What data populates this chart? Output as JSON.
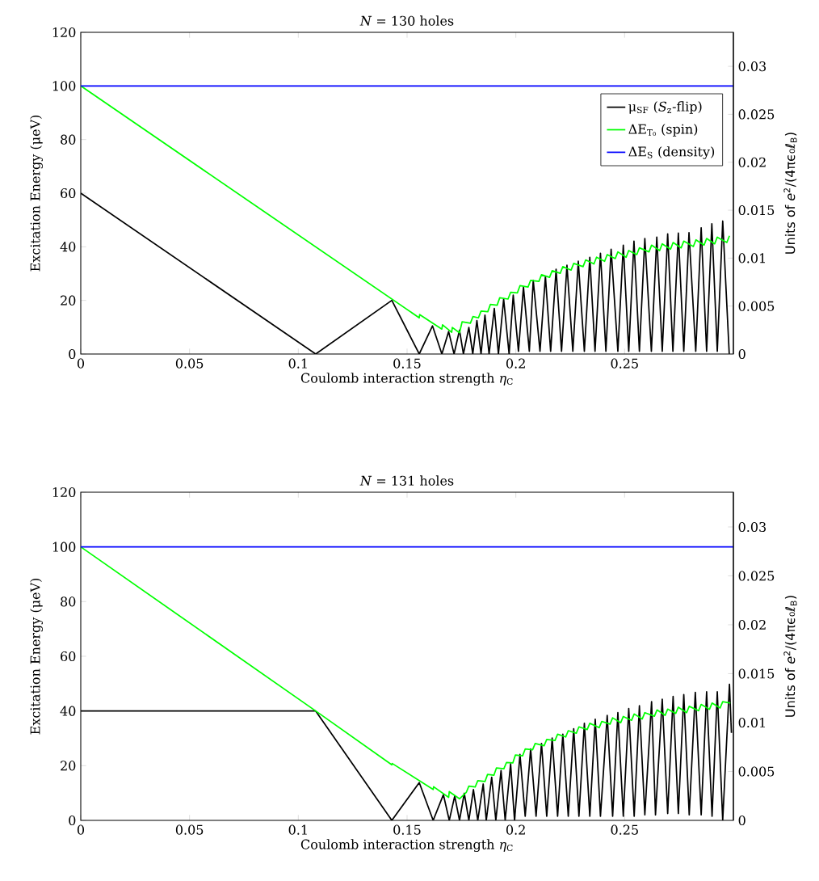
{
  "chart_data": [
    {
      "type": "line",
      "title": "*N* = 130 holes",
      "xlabel": "Coulomb interaction strength *η*$_{C}$",
      "ylabel": "Excitation Energy (μeV)",
      "y2label": "Units of *e*$^{2}$/(4πϵ₀ℓ$_{B}$)",
      "xlim": [
        0,
        0.3
      ],
      "ylim": [
        0,
        120
      ],
      "y2lim": [
        0,
        0.03355
      ],
      "xticks": [
        0,
        0.05,
        0.1,
        0.15,
        0.2,
        0.25
      ],
      "yticks": [
        0,
        20,
        40,
        60,
        80,
        100,
        120
      ],
      "y2ticks": [
        0,
        0.005,
        0.01,
        0.015,
        0.02,
        0.025,
        0.03
      ],
      "legend": "top right",
      "grid": false,
      "line_style": "solid",
      "series": [
        {
          "name": "μ$_{SF}$ (*S*$_{z}$-flip)",
          "color": "#000000",
          "x": [
            0,
            0.108,
            0.143,
            0.1556,
            0.1617,
            0.166,
            0.1691,
            0.1716,
            0.1741,
            0.1759,
            0.1784,
            0.1802,
            0.1821,
            0.184,
            0.1858,
            0.1877,
            0.1901,
            0.192,
            0.1944,
            0.1969,
            0.1988,
            0.2012,
            0.2035,
            0.2062,
            0.208,
            0.2111,
            0.2136,
            0.216,
            0.2185,
            0.221,
            0.2235,
            0.2262,
            0.2287,
            0.2315,
            0.234,
            0.2364,
            0.2389,
            0.2414,
            0.2438,
            0.2469,
            0.2494,
            0.2519,
            0.2543,
            0.2568,
            0.2593,
            0.2623,
            0.2648,
            0.2673,
            0.2698,
            0.2722,
            0.2747,
            0.2772,
            0.2796,
            0.2827,
            0.2852,
            0.2877,
            0.2901,
            0.2926,
            0.2951,
            0.2981
          ],
          "values": [
            60,
            0,
            20,
            0,
            10.5,
            0,
            8.4,
            0,
            8.9,
            0,
            9.9,
            0,
            12.5,
            0,
            14.5,
            0,
            17,
            0,
            20.5,
            0,
            22,
            1,
            25,
            1,
            27.5,
            1,
            29,
            1,
            31.6,
            1,
            33.1,
            1,
            34.6,
            1,
            36.1,
            1,
            37.6,
            1,
            39.1,
            1,
            40.6,
            1,
            42.1,
            1,
            43.1,
            1,
            43.6,
            1,
            44.8,
            1,
            45.1,
            1,
            45.3,
            1,
            47.1,
            1,
            48.6,
            1,
            49.6,
            0
          ]
        },
        {
          "name": "ΔE$_{T₀}$ (spin)",
          "color": "#00ff00",
          "x": [
            0,
            0.1556,
            0.1558,
            0.166,
            0.1663,
            0.1705,
            0.1708,
            0.1741,
            0.1753,
            0.1791,
            0.1803,
            0.1828,
            0.184,
            0.1871,
            0.1883,
            0.1914,
            0.1926,
            0.1964,
            0.1976,
            0.2007,
            0.2019,
            0.2056,
            0.2068,
            0.2106,
            0.2118,
            0.2155,
            0.2167,
            0.2204,
            0.2216,
            0.2254,
            0.2266,
            0.2309,
            0.2321,
            0.2359,
            0.2371,
            0.2408,
            0.242,
            0.2457,
            0.2469,
            0.2507,
            0.2519,
            0.2556,
            0.2568,
            0.2612,
            0.2624,
            0.2661,
            0.2673,
            0.2711,
            0.2723,
            0.276,
            0.2772,
            0.2816,
            0.2828,
            0.2865,
            0.2877,
            0.2914,
            0.2926,
            0.297,
            0.2982
          ],
          "values": [
            100,
            13.5,
            14.7,
            9.3,
            10.9,
            8.1,
            9.9,
            7.9,
            12,
            11.5,
            14,
            13.5,
            16,
            15.8,
            18.5,
            18.2,
            21,
            20.5,
            23,
            22.8,
            25.5,
            25,
            27.5,
            27.1,
            29.6,
            28.6,
            31.1,
            30.1,
            32.6,
            31.3,
            33.8,
            32.6,
            35.1,
            33.6,
            36.1,
            34.6,
            37.1,
            35.6,
            38.1,
            36.1,
            38.6,
            37.1,
            39.6,
            38.1,
            40.6,
            38.6,
            41.1,
            39.1,
            41.6,
            39.6,
            42.1,
            40.1,
            42.6,
            40.6,
            43.1,
            41.1,
            43.6,
            41.6,
            44.1
          ]
        },
        {
          "name": "ΔE$_{S}$ (density)",
          "color": "#0000ff",
          "x": [
            0,
            0.3
          ],
          "values": [
            100,
            100
          ]
        }
      ]
    },
    {
      "type": "line",
      "title": "*N* = 131 holes",
      "xlabel": "Coulomb interaction strength *η*$_{C}$",
      "ylabel": "Excitation Energy (μeV)",
      "y2label": "Units of *e*$^{2}$/(4πϵ₀ℓ$_{B}$)",
      "xlim": [
        0,
        0.3
      ],
      "ylim": [
        0,
        120
      ],
      "y2lim": [
        0,
        0.03355
      ],
      "xticks": [
        0,
        0.05,
        0.1,
        0.15,
        0.2,
        0.25
      ],
      "yticks": [
        0,
        20,
        40,
        60,
        80,
        100,
        120
      ],
      "y2ticks": [
        0,
        0.005,
        0.01,
        0.015,
        0.02,
        0.025,
        0.03
      ],
      "grid": false,
      "line_style": "solid",
      "series": [
        {
          "color": "#000000",
          "x": [
            0,
            0.108,
            0.143,
            0.1556,
            0.162,
            0.1667,
            0.1694,
            0.1719,
            0.1741,
            0.1763,
            0.1784,
            0.1805,
            0.1825,
            0.185,
            0.1864,
            0.1889,
            0.1908,
            0.1932,
            0.1951,
            0.1976,
            0.1994,
            0.2019,
            0.2043,
            0.2068,
            0.2093,
            0.2118,
            0.2142,
            0.2167,
            0.2192,
            0.2216,
            0.2241,
            0.2266,
            0.229,
            0.2315,
            0.234,
            0.2365,
            0.2389,
            0.242,
            0.2445,
            0.2469,
            0.2494,
            0.2519,
            0.2544,
            0.2568,
            0.2593,
            0.2624,
            0.2642,
            0.2673,
            0.2698,
            0.2723,
            0.2747,
            0.2772,
            0.2797,
            0.2825,
            0.2852,
            0.2877,
            0.2902,
            0.2926,
            0.2951,
            0.2982,
            0.2991
          ],
          "values": [
            40,
            40,
            0,
            13.8,
            0,
            9.4,
            0,
            8.9,
            0,
            9.9,
            0,
            11.3,
            0,
            13.3,
            0,
            15.8,
            0,
            18.2,
            0,
            20.7,
            0,
            24.1,
            1.5,
            26.1,
            1.5,
            28.1,
            1.5,
            30.1,
            1.5,
            31.5,
            1.5,
            33.5,
            1.5,
            35.5,
            1.5,
            37,
            1.5,
            38.4,
            1.5,
            39.4,
            1.5,
            40.9,
            1.5,
            41.9,
            2,
            43.4,
            2,
            44.3,
            2.5,
            45.3,
            2.5,
            46,
            2,
            46.8,
            2,
            47,
            1.5,
            47,
            0,
            49.8,
            32
          ]
        },
        {
          "color": "#00ff00",
          "x": [
            0,
            0.108,
            0.143,
            0.1432,
            0.162,
            0.1622,
            0.1691,
            0.1694,
            0.1741,
            0.1772,
            0.1784,
            0.1813,
            0.1825,
            0.1858,
            0.187,
            0.1899,
            0.1911,
            0.1945,
            0.1957,
            0.1986,
            0.1998,
            0.2031,
            0.2043,
            0.2077,
            0.2089,
            0.213,
            0.2142,
            0.218,
            0.2192,
            0.2229,
            0.2241,
            0.2278,
            0.229,
            0.2328,
            0.234,
            0.2383,
            0.2395,
            0.2433,
            0.2445,
            0.2482,
            0.2494,
            0.2532,
            0.2544,
            0.2581,
            0.2593,
            0.2637,
            0.2649,
            0.2686,
            0.2698,
            0.2735,
            0.2747,
            0.2785,
            0.2797,
            0.284,
            0.2852,
            0.289,
            0.2902,
            0.2939,
            0.2951,
            0.2986
          ],
          "values": [
            100,
            40,
            20.3,
            20.8,
            11.3,
            12.3,
            8.4,
            10.5,
            7.9,
            10.2,
            12.5,
            12.2,
            14.5,
            14.2,
            16.8,
            16.5,
            19.2,
            18.9,
            21.2,
            21,
            23.9,
            23.6,
            26.1,
            25.8,
            28.1,
            27.3,
            29.6,
            29.2,
            31.5,
            30.5,
            32.8,
            31.9,
            34.2,
            33.2,
            35.5,
            33.9,
            36.2,
            35.2,
            37.5,
            35.7,
            38,
            36.6,
            38.9,
            37.1,
            39.4,
            38.1,
            40.4,
            38.4,
            40.7,
            39.1,
            41.4,
            39.4,
            41.7,
            40.1,
            42.4,
            40.6,
            42.9,
            41.1,
            43.4,
            42.9
          ]
        },
        {
          "color": "#0000ff",
          "x": [
            0,
            0.3
          ],
          "values": [
            100,
            100
          ]
        }
      ]
    }
  ]
}
